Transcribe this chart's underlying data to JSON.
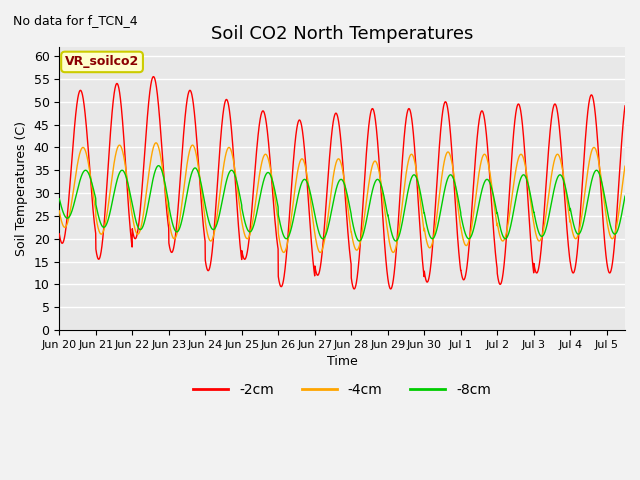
{
  "title": "Soil CO2 North Temperatures",
  "subtitle": "No data for f_TCN_4",
  "ylabel": "Soil Temperatures (C)",
  "xlabel": "Time",
  "legend_label": "VR_soilco2",
  "ylim": [
    0,
    62
  ],
  "yticks": [
    0,
    5,
    10,
    15,
    20,
    25,
    30,
    35,
    40,
    45,
    50,
    55,
    60
  ],
  "num_days": 15.5,
  "bg_color": "#e0e0e0",
  "plot_bg": "#e8e8e8",
  "fig_bg": "#f2f2f2",
  "line_colors": {
    "-2cm": "#ff0000",
    "-4cm": "#ffa500",
    "-8cm": "#00cc00"
  },
  "xtick_labels": [
    "Jun 20",
    "Jun 21",
    "Jun 22",
    "Jun 23",
    "Jun 24",
    "Jun 25",
    "Jun 26",
    "Jun 27",
    "Jun 28",
    "Jun 29",
    "Jun 30",
    "Jul 1",
    "Jul 2",
    "Jul 3",
    "Jul 4",
    "Jul 5"
  ],
  "xtick_positions": [
    0,
    1,
    2,
    3,
    4,
    5,
    6,
    7,
    8,
    9,
    10,
    11,
    12,
    13,
    14,
    15
  ],
  "series_2cm_peaks": [
    52.5,
    54.0,
    55.5,
    52.5,
    50.5,
    48.0,
    46.0,
    47.5,
    48.5,
    48.5,
    50.0,
    48.0,
    49.5,
    49.5,
    51.5
  ],
  "series_2cm_troughs": [
    19.0,
    15.5,
    20.0,
    17.0,
    13.0,
    15.5,
    9.5,
    12.0,
    9.0,
    9.0,
    10.5,
    11.0,
    10.0,
    12.5,
    12.5,
    15.0
  ],
  "series_4cm_peaks": [
    40.0,
    40.5,
    41.0,
    40.5,
    40.0,
    38.5,
    37.5,
    37.5,
    37.0,
    38.5,
    39.0,
    38.5,
    38.5,
    38.5,
    40.0
  ],
  "series_4cm_troughs": [
    22.5,
    21.0,
    21.0,
    20.0,
    19.5,
    20.0,
    17.0,
    17.0,
    17.5,
    17.0,
    18.0,
    18.5,
    19.5,
    19.5,
    20.0,
    20.5
  ],
  "series_8cm_peaks": [
    35.0,
    35.0,
    36.0,
    35.5,
    35.0,
    34.5,
    33.0,
    33.0,
    33.0,
    34.0,
    34.0,
    33.0,
    34.0,
    34.0,
    35.0
  ],
  "series_8cm_troughs": [
    24.5,
    22.5,
    22.0,
    21.5,
    22.0,
    21.5,
    20.0,
    20.0,
    19.5,
    19.5,
    20.0,
    20.0,
    20.0,
    20.5,
    21.0,
    21.5
  ]
}
